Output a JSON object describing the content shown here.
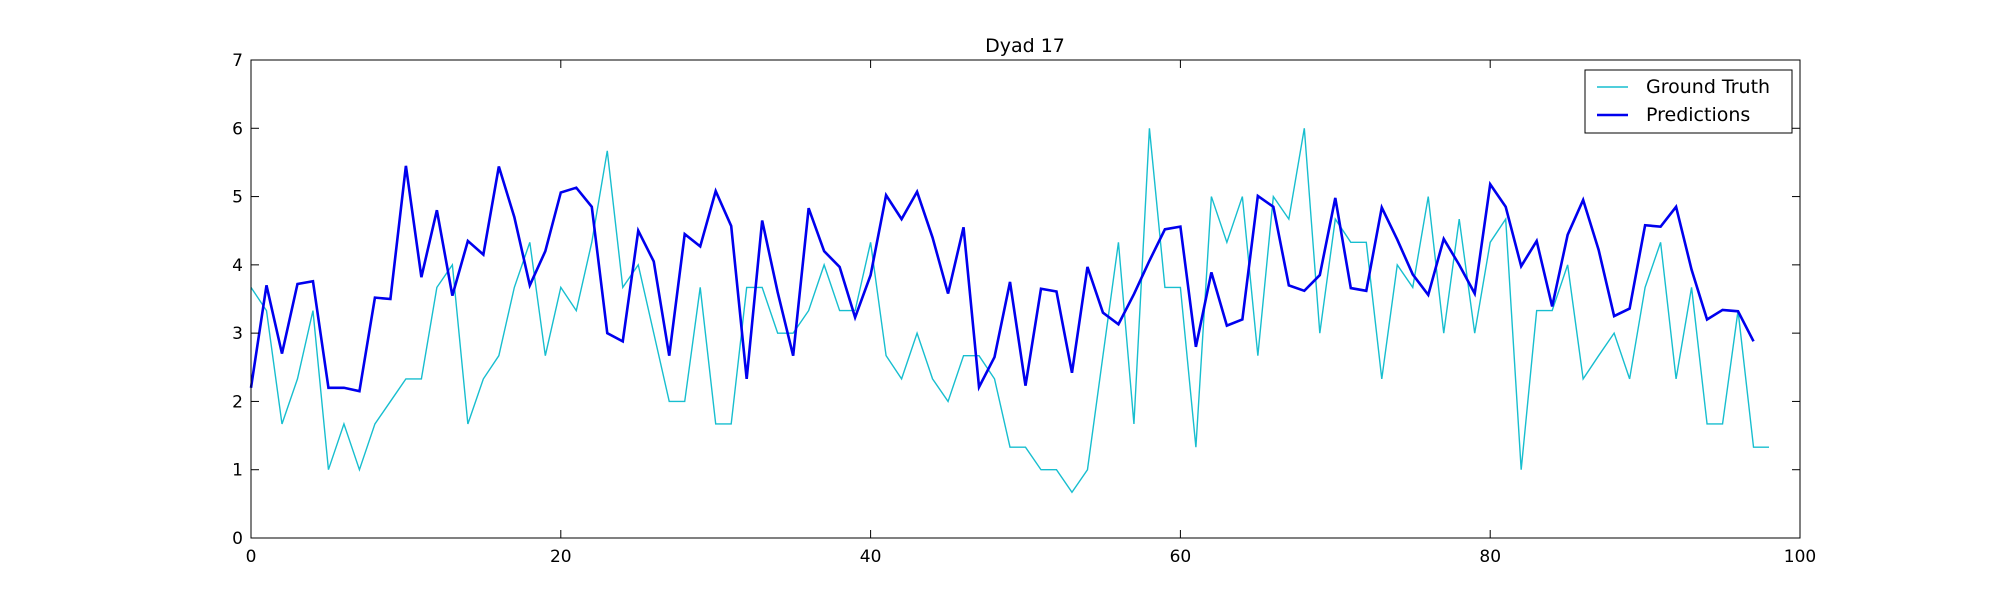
{
  "chart_data": {
    "type": "line",
    "title": "Dyad 17",
    "xlabel": "",
    "ylabel": "",
    "xlim": [
      0,
      100
    ],
    "ylim": [
      0,
      7
    ],
    "xticks": [
      "0",
      "20",
      "40",
      "60",
      "80",
      "100"
    ],
    "yticks": [
      "0",
      "1",
      "2",
      "3",
      "4",
      "5",
      "6",
      "7"
    ],
    "grid": false,
    "legend_position": "top-right",
    "series": [
      {
        "name": "Ground Truth",
        "color": "#17becf",
        "style": "thin",
        "values": [
          3.67,
          3.33,
          1.67,
          2.33,
          3.33,
          1.0,
          1.67,
          1.0,
          1.67,
          2.0,
          2.33,
          2.33,
          3.67,
          4.0,
          1.67,
          2.33,
          2.67,
          3.67,
          4.33,
          2.67,
          3.67,
          3.33,
          4.33,
          5.67,
          3.67,
          4.0,
          3.0,
          2.0,
          2.0,
          3.67,
          1.67,
          1.67,
          3.67,
          3.67,
          3.0,
          3.0,
          3.33,
          4.0,
          3.33,
          3.33,
          4.33,
          2.67,
          2.33,
          3.0,
          2.33,
          2.0,
          2.67,
          2.67,
          2.33,
          1.33,
          1.33,
          1.0,
          1.0,
          0.67,
          1.0,
          2.67,
          4.33,
          1.67,
          6.0,
          3.67,
          3.67,
          1.33,
          5.0,
          4.33,
          5.0,
          2.67,
          5.0,
          4.67,
          6.0,
          3.0,
          4.67,
          4.33,
          4.33,
          2.33,
          4.0,
          3.67,
          5.0,
          3.0,
          4.67,
          3.0,
          4.33,
          4.67,
          1.0,
          3.33,
          3.33,
          4.0,
          2.33,
          2.67,
          3.0,
          2.33,
          3.67,
          4.33,
          2.33,
          3.67,
          1.67,
          1.67,
          3.33,
          1.33,
          1.33
        ]
      },
      {
        "name": "Predictions",
        "color": "#0000ee",
        "style": "thick",
        "values": [
          2.2,
          3.7,
          2.7,
          3.72,
          3.76,
          2.2,
          2.2,
          2.15,
          3.52,
          3.5,
          5.45,
          3.82,
          4.8,
          3.55,
          4.35,
          4.15,
          5.44,
          4.7,
          3.7,
          4.2,
          5.06,
          5.13,
          4.85,
          3.0,
          2.88,
          4.5,
          4.05,
          2.67,
          4.45,
          4.27,
          5.08,
          4.57,
          2.33,
          4.65,
          3.6,
          2.67,
          4.83,
          4.2,
          3.97,
          3.23,
          3.85,
          5.02,
          4.67,
          5.07,
          4.4,
          3.58,
          4.55,
          2.21,
          2.65,
          3.75,
          2.23,
          3.65,
          3.61,
          2.42,
          3.97,
          3.3,
          3.13,
          3.57,
          4.06,
          4.52,
          4.56,
          2.8,
          3.89,
          3.11,
          3.2,
          5.01,
          4.85,
          3.7,
          3.62,
          3.85,
          4.98,
          3.66,
          3.62,
          4.84,
          4.37,
          3.86,
          3.56,
          4.38,
          4.0,
          3.58,
          5.18,
          4.85,
          3.98,
          4.35,
          3.39,
          4.44,
          4.95,
          4.22,
          3.25,
          3.36,
          4.58,
          4.56,
          4.85,
          3.93,
          3.2,
          3.34,
          3.32,
          2.88
        ]
      }
    ]
  }
}
